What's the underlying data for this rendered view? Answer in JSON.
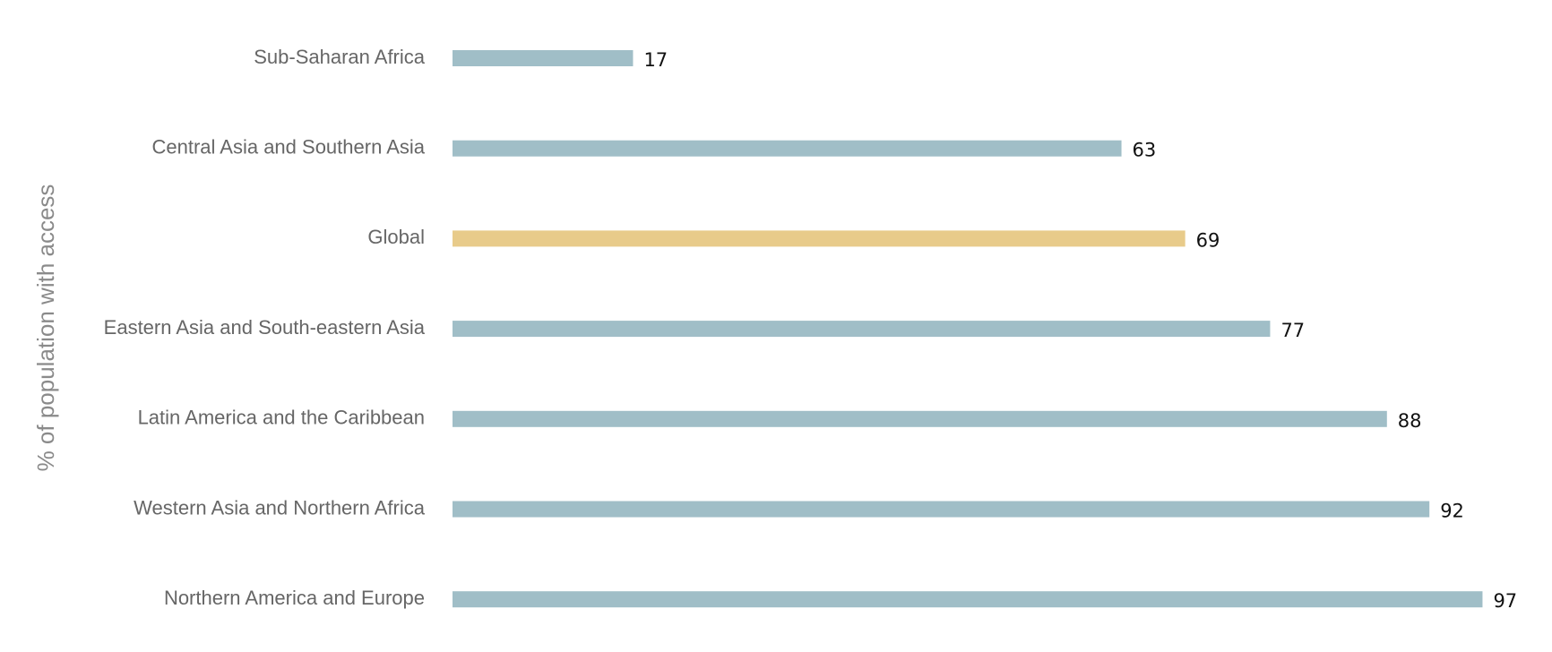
{
  "chart_data": {
    "type": "bar",
    "orientation": "horizontal",
    "ylabel": "% of population with access",
    "categories": [
      "Sub-Saharan Africa",
      "Central Asia and Southern Asia",
      "Global",
      "Eastern Asia and South-eastern Asia",
      "Latin America and the Caribbean",
      "Western Asia and Northern Africa",
      "Northern America and Europe"
    ],
    "values": [
      17,
      63,
      69,
      77,
      88,
      92,
      97
    ],
    "highlight_category": "Global",
    "xlim": [
      0,
      100
    ],
    "grid": false,
    "legend": "none",
    "colors": {
      "bar": "#a0bec7",
      "highlight_bar": "#e8cb8a",
      "category_text": "#666666",
      "value_text": "#111111",
      "axis_label_text": "#8a8a8a"
    }
  }
}
